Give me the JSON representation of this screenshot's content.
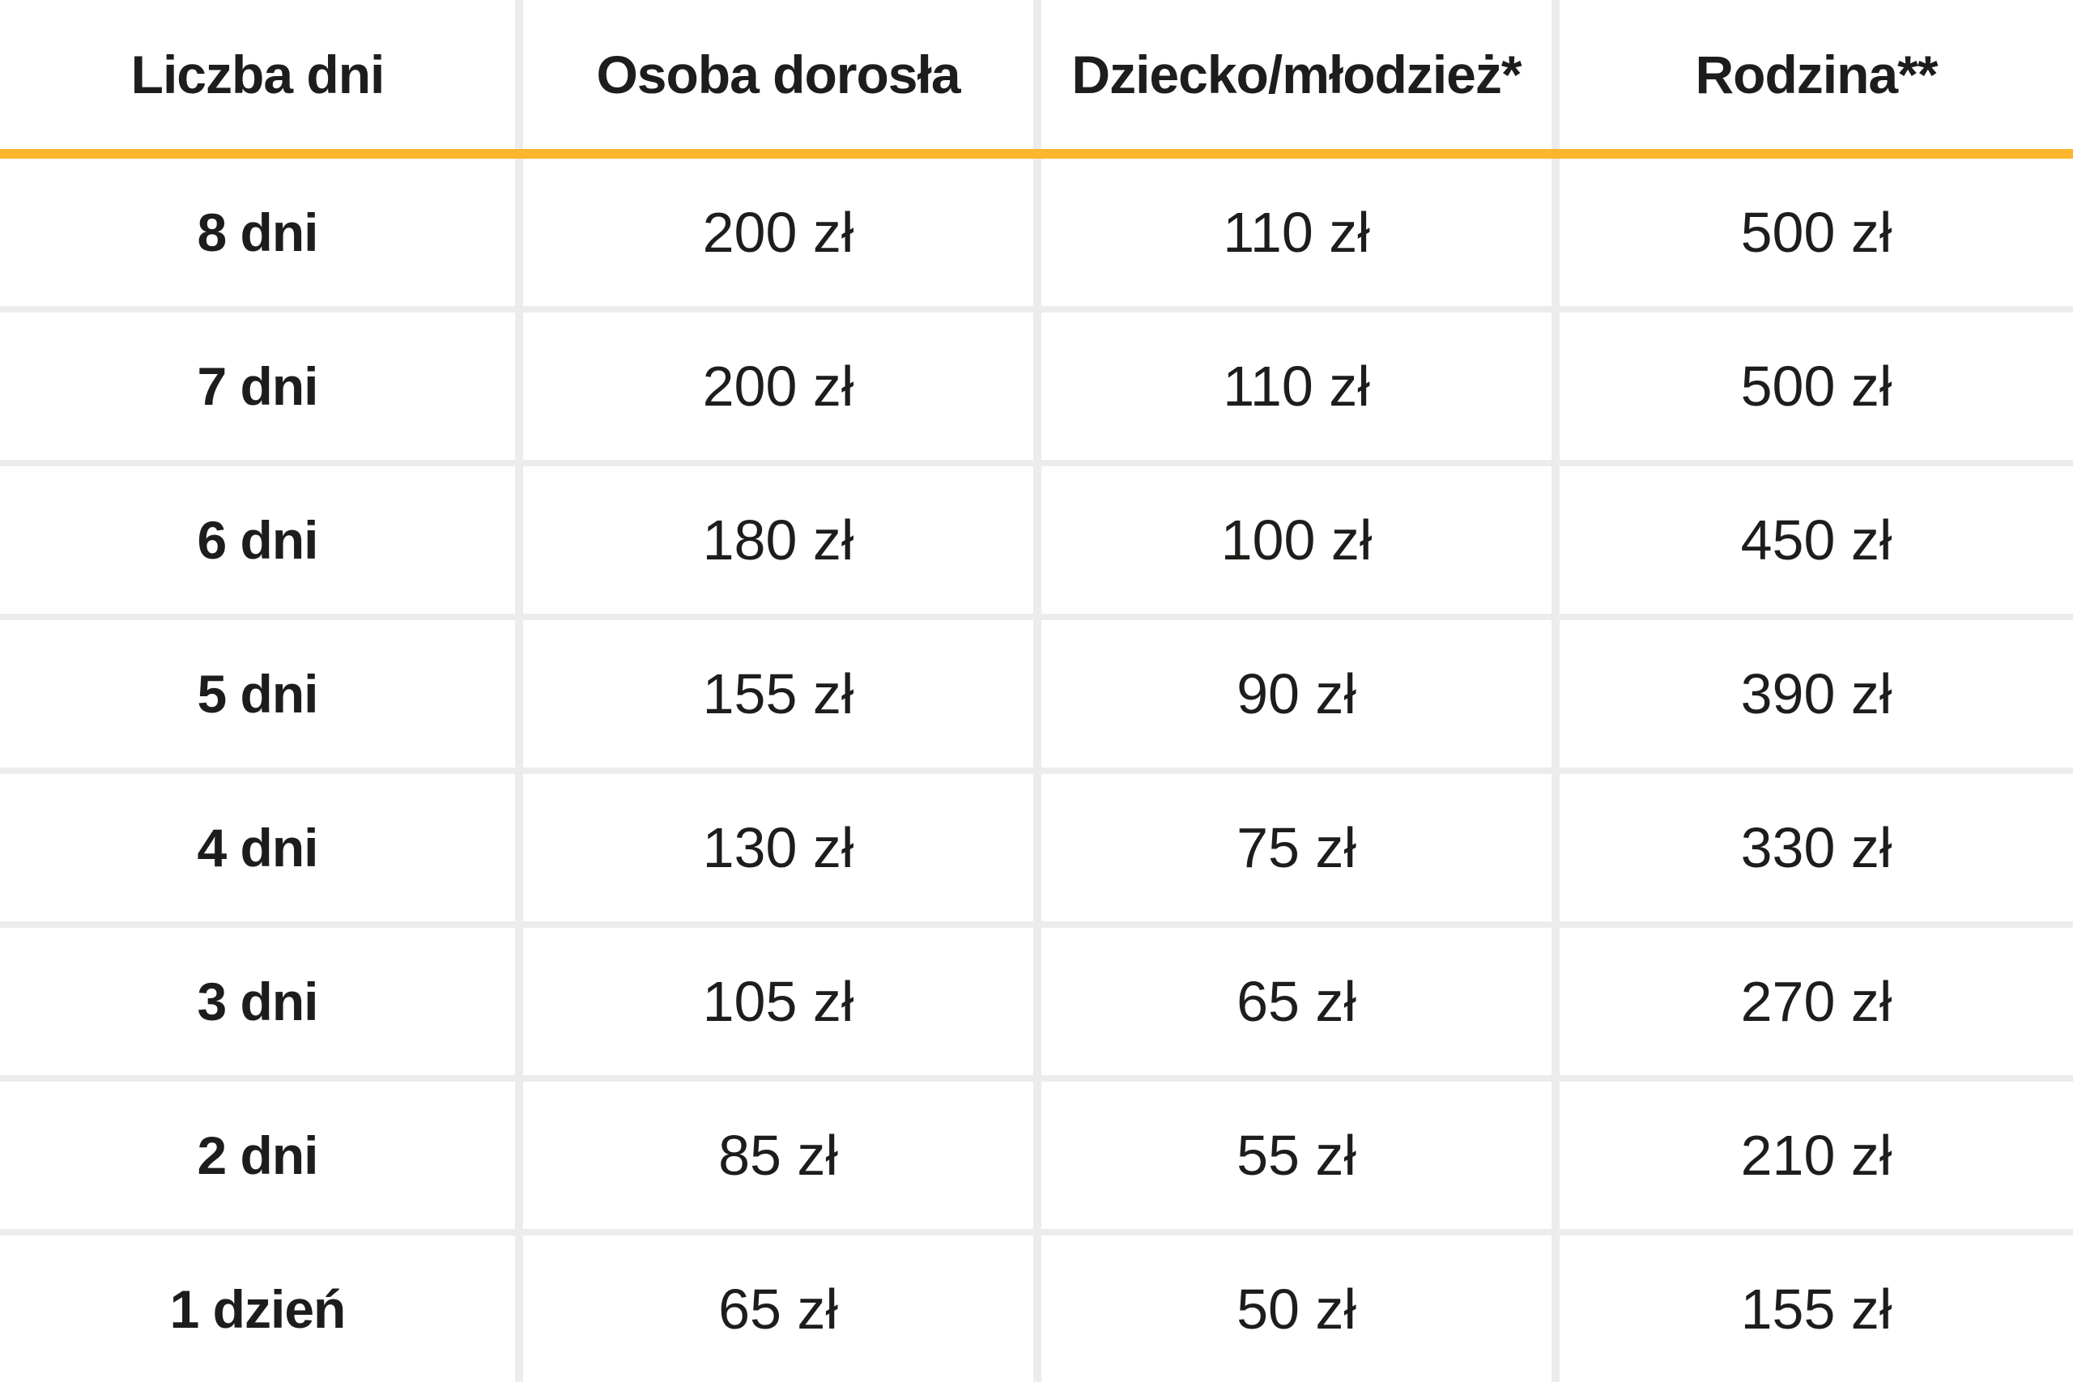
{
  "chart_data": {
    "type": "table",
    "title": "",
    "columns": [
      "Liczba dni",
      "Osoba dorosła",
      "Dziecko/młodzież*",
      "Rodzina**"
    ],
    "rows": [
      [
        "8 dni",
        "200 zł",
        "110 zł",
        "500 zł"
      ],
      [
        "7 dni",
        "200 zł",
        "110 zł",
        "500 zł"
      ],
      [
        "6 dni",
        "180 zł",
        "100 zł",
        "450 zł"
      ],
      [
        "5 dni",
        "155 zł",
        "90 zł",
        "390 zł"
      ],
      [
        "4 dni",
        "130 zł",
        "75 zł",
        "330 zł"
      ],
      [
        "3 dni",
        "105 zł",
        "65 zł",
        "270 zł"
      ],
      [
        "2 dni",
        "85 zł",
        "55 zł",
        "210 zł"
      ],
      [
        "1 dzień",
        "65 zł",
        "50 zł",
        "155 zł"
      ]
    ],
    "layout_hints": {
      "header_bold": true,
      "first_column_bold": true,
      "accent_bar_under_header": true
    }
  },
  "colors": {
    "accent": "#fdb52d",
    "divider": "#ececec",
    "text": "#1d1d1b",
    "background": "#ffffff"
  }
}
